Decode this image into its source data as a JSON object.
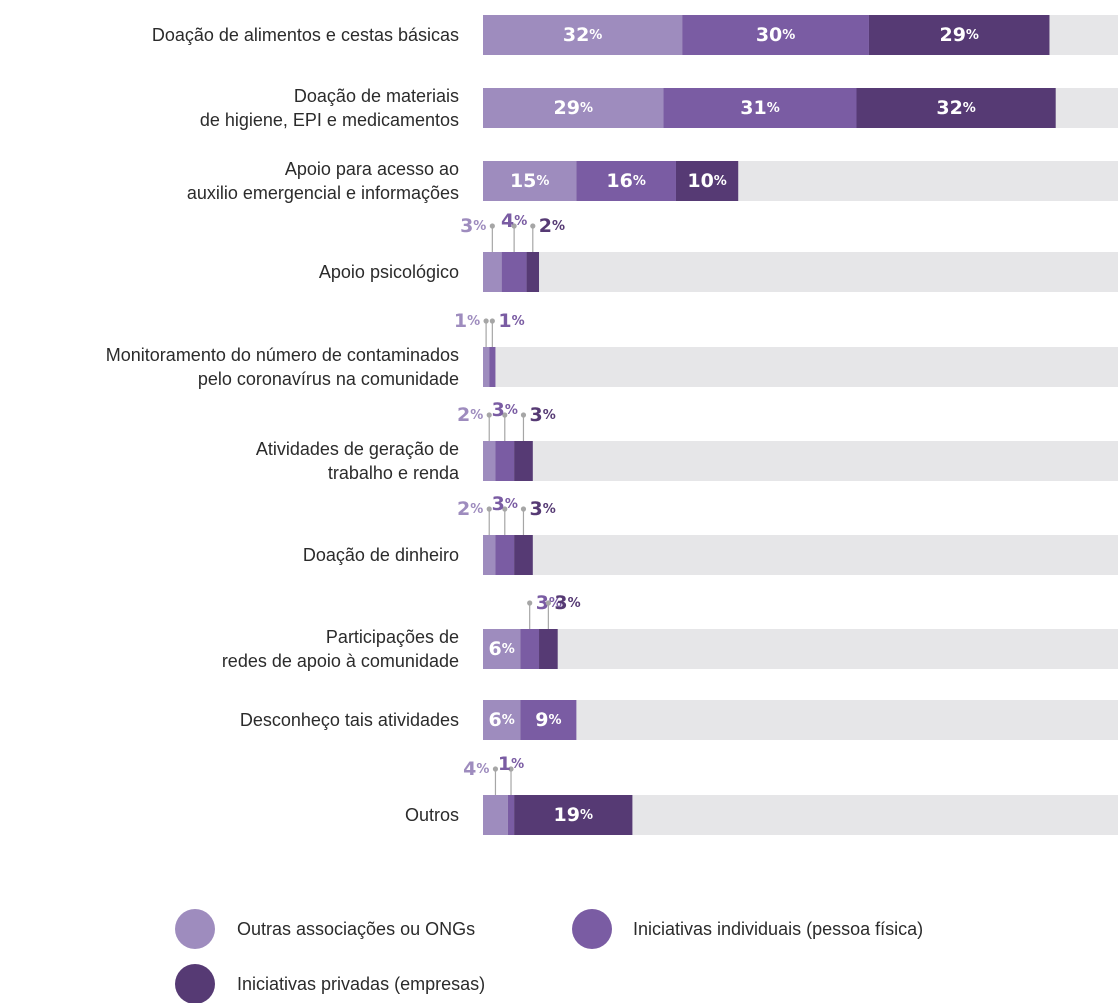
{
  "chart_data": {
    "type": "bar",
    "stacked": true,
    "orientation": "horizontal",
    "xlim": [
      0,
      100
    ],
    "categories": [
      [
        "Doação de alimentos e cestas básicas"
      ],
      [
        "Doação de materiais",
        "de higiene, EPI e medicamentos"
      ],
      [
        "Apoio para acesso ao",
        "auxilio emergencial e informações"
      ],
      [
        "Apoio psicológico"
      ],
      [
        "Monitoramento do número de contaminados",
        "pelo coronavírus na comunidade"
      ],
      [
        "Atividades de geração de",
        "trabalho e renda"
      ],
      [
        "Doação de dinheiro"
      ],
      [
        "Participações de",
        "redes de apoio à comunidade"
      ],
      [
        "Desconheço tais atividades"
      ],
      [
        "Outros"
      ]
    ],
    "series": [
      {
        "name": "Outras associações ou ONGs",
        "values": [
          32,
          29,
          15,
          3,
          1,
          2,
          2,
          6,
          6,
          4
        ]
      },
      {
        "name": "Iniciativas individuais (pessoa física)",
        "values": [
          30,
          31,
          16,
          4,
          1,
          3,
          3,
          3,
          9,
          1
        ]
      },
      {
        "name": "Iniciativas privadas (empresas)",
        "values": [
          29,
          32,
          10,
          2,
          0,
          3,
          3,
          3,
          0,
          19
        ]
      }
    ],
    "value_suffix": "%",
    "legend_position": "bottom",
    "colors": {
      "series": [
        "#9e8cbe",
        "#7a5ca3",
        "#563a74"
      ],
      "track": "#e6e6e8",
      "leader": "#a6a6a6",
      "inside_text": "#ffffff"
    }
  }
}
